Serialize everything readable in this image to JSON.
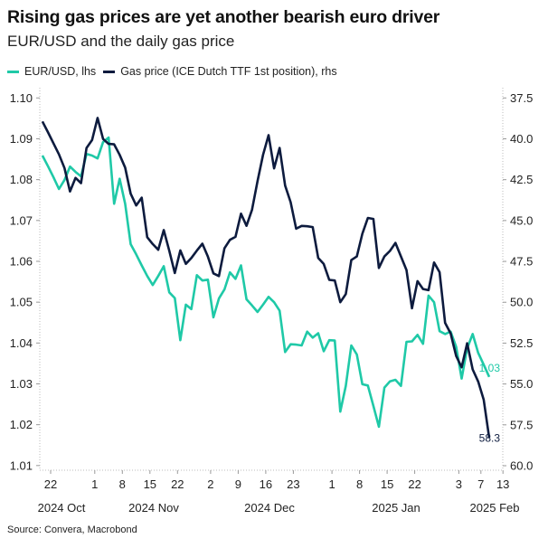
{
  "chart_data": {
    "type": "line",
    "title": "Rising gas prices are yet another bearish euro driver",
    "subtitle": "EUR/USD and the daily gas price",
    "source": "Source: Convera, Macrobond",
    "legend_position": "top-left",
    "grid": false,
    "x": [
      "2024-10-21",
      "2024-10-22",
      "2024-10-23",
      "2024-10-24",
      "2024-10-25",
      "2024-10-28",
      "2024-10-29",
      "2024-10-30",
      "2024-10-31",
      "2024-11-01",
      "2024-11-04",
      "2024-11-05",
      "2024-11-06",
      "2024-11-07",
      "2024-11-08",
      "2024-11-11",
      "2024-11-12",
      "2024-11-13",
      "2024-11-14",
      "2024-11-15",
      "2024-11-18",
      "2024-11-19",
      "2024-11-20",
      "2024-11-21",
      "2024-11-22",
      "2024-11-25",
      "2024-11-26",
      "2024-11-27",
      "2024-11-28",
      "2024-11-29",
      "2024-12-02",
      "2024-12-03",
      "2024-12-04",
      "2024-12-05",
      "2024-12-06",
      "2024-12-09",
      "2024-12-10",
      "2024-12-11",
      "2024-12-12",
      "2024-12-13",
      "2024-12-16",
      "2024-12-17",
      "2024-12-18",
      "2024-12-19",
      "2024-12-20",
      "2024-12-23",
      "2024-12-24",
      "2024-12-25",
      "2024-12-26",
      "2024-12-27",
      "2024-12-30",
      "2024-12-31",
      "2025-01-01",
      "2025-01-02",
      "2025-01-03",
      "2025-01-06",
      "2025-01-07",
      "2025-01-08",
      "2025-01-09",
      "2025-01-10",
      "2025-01-13",
      "2025-01-14",
      "2025-01-15",
      "2025-01-16",
      "2025-01-17",
      "2025-01-20",
      "2025-01-21",
      "2025-01-22",
      "2025-01-23",
      "2025-01-24",
      "2025-01-27",
      "2025-01-28",
      "2025-01-29",
      "2025-01-30",
      "2025-01-31",
      "2025-02-03",
      "2025-02-04",
      "2025-02-05",
      "2025-02-06",
      "2025-02-07",
      "2025-02-10",
      "2025-02-11"
    ],
    "series": [
      {
        "name": "EUR/USD, lhs",
        "axis": "left",
        "color": "#1fc9a7",
        "last_label": "1.03",
        "values": [
          1.0859,
          1.0833,
          1.0806,
          1.0777,
          1.0799,
          1.0832,
          1.0819,
          1.0808,
          1.0863,
          1.0859,
          1.0852,
          1.0892,
          1.0903,
          1.0741,
          1.0802,
          1.0741,
          1.0642,
          1.0617,
          1.059,
          1.0564,
          1.0542,
          1.0564,
          1.0588,
          1.0524,
          1.051,
          1.0407,
          1.0494,
          1.0483,
          1.0566,
          1.0553,
          1.0555,
          1.0463,
          1.0509,
          1.0531,
          1.0573,
          1.0557,
          1.059,
          1.0507,
          1.0492,
          1.0476,
          1.0494,
          1.0513,
          1.05,
          1.0479,
          1.0378,
          1.0397,
          1.0396,
          1.0394,
          1.0428,
          1.0413,
          1.0424,
          1.038,
          1.0407,
          1.0406,
          1.0232,
          1.0295,
          1.0394,
          1.0372,
          1.0299,
          1.0296,
          1.0246,
          1.0195,
          1.0291,
          1.0306,
          1.031,
          1.0295,
          1.0403,
          1.0404,
          1.042,
          1.0398,
          1.0516,
          1.05,
          1.0429,
          1.0422,
          1.0428,
          1.0391,
          1.0313,
          1.0387,
          1.0422,
          1.0376,
          1.0347,
          1.0317
        ]
      },
      {
        "name": "Gas price (ICE Dutch TTF 1st position), rhs",
        "axis": "right",
        "color": "#0d1b3e",
        "last_label": "58.3",
        "values": [
          38.94,
          39.59,
          40.27,
          40.95,
          41.79,
          43.22,
          42.39,
          42.71,
          40.56,
          40.08,
          38.72,
          40.01,
          40.31,
          40.34,
          40.98,
          41.76,
          43.36,
          44.08,
          43.6,
          46.02,
          46.44,
          46.79,
          45.58,
          46.85,
          48.21,
          46.83,
          47.65,
          47.29,
          46.84,
          46.42,
          47.21,
          48.23,
          48.4,
          46.7,
          46.18,
          46.0,
          44.58,
          45.32,
          44.34,
          42.59,
          40.98,
          39.78,
          41.81,
          40.56,
          42.86,
          43.88,
          45.5,
          45.33,
          45.35,
          45.4,
          47.29,
          47.66,
          48.63,
          48.67,
          50.0,
          49.5,
          47.42,
          47.2,
          45.81,
          44.84,
          44.9,
          47.9,
          47.2,
          46.86,
          46.37,
          47.2,
          48.03,
          50.37,
          48.71,
          49.19,
          49.26,
          47.57,
          48.16,
          51.26,
          51.9,
          53.28,
          53.98,
          52.51,
          54.11,
          54.85,
          55.96,
          58.3
        ]
      }
    ],
    "left_axis": {
      "ticks": [
        "1.10",
        "1.09",
        "1.08",
        "1.07",
        "1.06",
        "1.05",
        "1.04",
        "1.03",
        "1.02",
        "1.01"
      ],
      "range": [
        1.01,
        1.1
      ]
    },
    "right_axis": {
      "ticks": [
        "37.5",
        "40.0",
        "42.5",
        "45.0",
        "47.5",
        "50.0",
        "52.5",
        "55.0",
        "57.5",
        "60.0"
      ],
      "range": [
        37.5,
        60.0
      ],
      "inverted": true
    },
    "x_ticks": [
      {
        "date": "2024-10-22",
        "label": "22"
      },
      {
        "date": "2024-11-01",
        "label": "1"
      },
      {
        "date": "2024-11-08",
        "label": "8"
      },
      {
        "date": "2024-11-15",
        "label": "15"
      },
      {
        "date": "2024-11-22",
        "label": "22"
      },
      {
        "date": "2024-12-02",
        "label": "2"
      },
      {
        "date": "2024-12-09",
        "label": "9"
      },
      {
        "date": "2024-12-16",
        "label": "16"
      },
      {
        "date": "2024-12-23",
        "label": "23"
      },
      {
        "date": "2025-01-01",
        "label": "1"
      },
      {
        "date": "2025-01-08",
        "label": "8"
      },
      {
        "date": "2025-01-15",
        "label": "15"
      },
      {
        "date": "2025-01-22",
        "label": "22"
      },
      {
        "date": "2025-02-03",
        "label": "3"
      },
      {
        "date": "2025-02-07",
        "label": "7"
      },
      {
        "date": "2025-02-13",
        "label": "13"
      }
    ],
    "month_labels": [
      "2024 Oct",
      "2024 Nov",
      "2024 Dec",
      "2025 Jan",
      "2025 Feb"
    ]
  }
}
